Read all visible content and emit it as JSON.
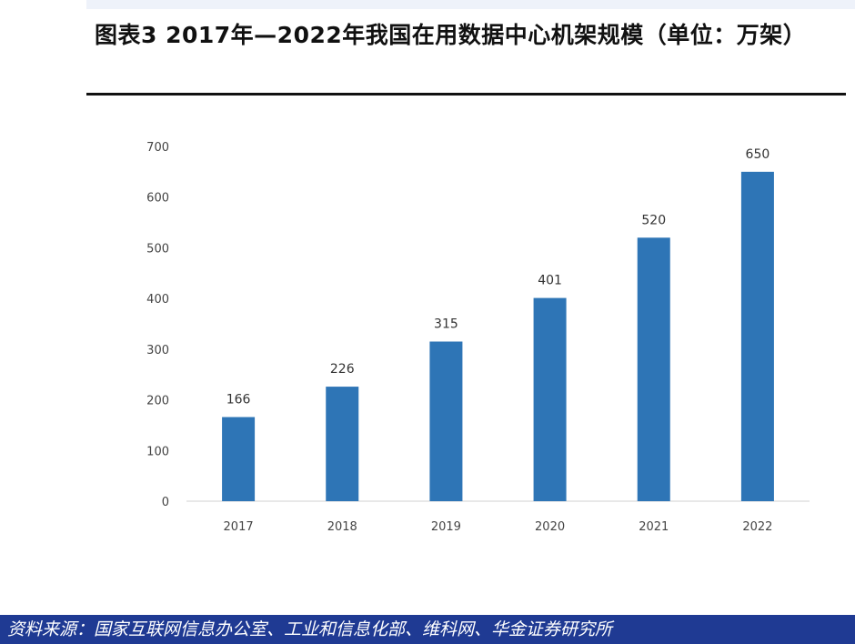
{
  "header": {
    "title": "图表3  2017年—2022年我国在用数据中心机架规模（单位：万架）"
  },
  "footer": {
    "source": "资料来源：国家互联网信息办公室、工业和信息化部、维科网、华金证券研究所"
  },
  "colors": {
    "bar": "#2e75b6",
    "footer_bg": "#1f3a93"
  },
  "chart_data": {
    "type": "bar",
    "categories": [
      "2017",
      "2018",
      "2019",
      "2020",
      "2021",
      "2022"
    ],
    "values": [
      166,
      226,
      315,
      401,
      520,
      650
    ],
    "data_labels": [
      "166",
      "226",
      "315",
      "401",
      "520",
      "650"
    ],
    "ylim": [
      0,
      700
    ],
    "yticks": [
      0,
      100,
      200,
      300,
      400,
      500,
      600,
      700
    ],
    "xlabel": "",
    "ylabel": "",
    "grid": false,
    "legend": "none"
  }
}
